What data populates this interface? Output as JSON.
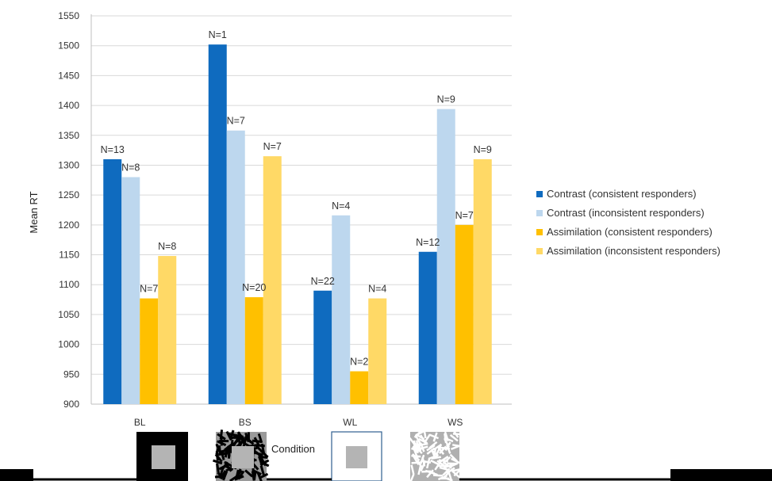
{
  "chart_data": {
    "type": "bar",
    "categories": [
      "BL",
      "BS",
      "WL",
      "WS"
    ],
    "series": [
      {
        "name": "Contrast (consistent responders)",
        "color": "#0f6bbf",
        "values": [
          1310,
          1502,
          1090,
          1155
        ],
        "labels": [
          "N=13",
          "N=1",
          "N=22",
          "N=12"
        ]
      },
      {
        "name": "Contrast (inconsistent responders)",
        "color": "#bdd7ee",
        "values": [
          1280,
          1358,
          1216,
          1394
        ],
        "labels": [
          "N=8",
          "N=7",
          "N=4",
          "N=9"
        ]
      },
      {
        "name": "Assimilation (consistent responders)",
        "color": "#ffc000",
        "values": [
          1077,
          1079,
          955,
          1200
        ],
        "labels": [
          "N=7",
          "N=20",
          "N=2",
          "N=7"
        ]
      },
      {
        "name": "Assimilation (inconsistent responders)",
        "color": "#ffd966",
        "values": [
          1148,
          1315,
          1077,
          1310
        ],
        "labels": [
          "N=8",
          "N=7",
          "N=4",
          "N=9"
        ]
      }
    ],
    "yticks": [
      900,
      950,
      1000,
      1050,
      1100,
      1150,
      1200,
      1250,
      1300,
      1350,
      1400,
      1450,
      1500,
      1550
    ],
    "ylim": [
      900,
      1550
    ],
    "ylabel": "Mean RT",
    "xlabel": "Condition",
    "gridlines": true,
    "legend_position": "right",
    "category_thumbnails": [
      "black-square-gray-center",
      "black-random-lines-pattern",
      "white-square-gray-center",
      "white-random-lines-pattern"
    ]
  }
}
